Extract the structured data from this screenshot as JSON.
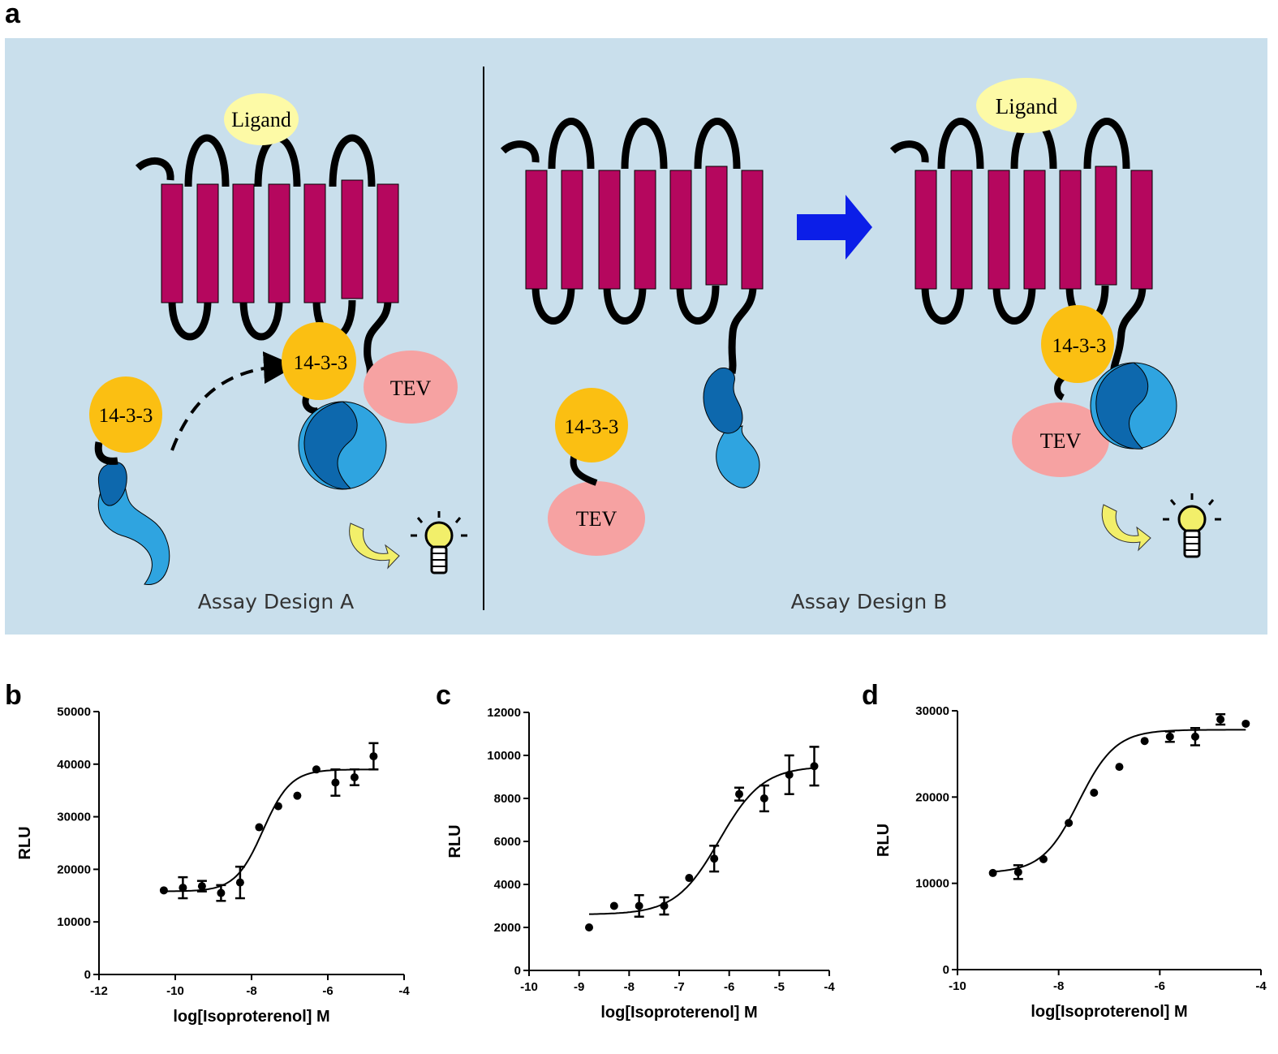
{
  "panels": {
    "a": "a",
    "b": "b",
    "c": "c",
    "d": "d"
  },
  "schematic": {
    "ligand_label": "Ligand",
    "protein_label": "14-3-3",
    "tev_label": "TEV",
    "design_a_caption": "Assay Design A",
    "design_b_caption": "Assay Design B",
    "colors": {
      "background": "#c9dfec",
      "helix": "#b5075e",
      "ligand": "#fdfaa6",
      "protein_14_3_3": "#fbbf12",
      "tev": "#f6a2a2",
      "luciferase_dark": "#0d68ad",
      "luciferase_light": "#2fa4e0",
      "arrow": "#0b1ee8",
      "bulb": "#f2ef6a"
    }
  },
  "chart_data": [
    {
      "id": "b",
      "type": "scatter",
      "xlabel": "log[Isoproterenol] M",
      "ylabel": "RLU",
      "xlim": [
        -12,
        -4
      ],
      "ylim": [
        0,
        50000
      ],
      "xticks": [
        -12,
        -10,
        -8,
        -6,
        -4
      ],
      "yticks": [
        0,
        10000,
        20000,
        30000,
        40000,
        50000
      ],
      "x": [
        -10.3,
        -9.8,
        -9.3,
        -8.8,
        -8.3,
        -7.8,
        -7.3,
        -6.8,
        -6.3,
        -5.8,
        -5.3,
        -4.8
      ],
      "y": [
        16000,
        16500,
        16800,
        15500,
        17500,
        28000,
        32000,
        34000,
        39000,
        36500,
        37500,
        41500
      ],
      "err": [
        0,
        2000,
        1000,
        1500,
        3000,
        0,
        0,
        0,
        0,
        2500,
        1500,
        2500
      ],
      "fit": {
        "bottom": 15800,
        "top": 39000,
        "log_ec50": -7.7,
        "hill": 1.2
      }
    },
    {
      "id": "c",
      "type": "scatter",
      "xlabel": "log[Isoproterenol] M",
      "ylabel": "RLU",
      "xlim": [
        -10,
        -4
      ],
      "ylim": [
        0,
        12000
      ],
      "xticks": [
        -10,
        -9,
        -8,
        -7,
        -6,
        -5,
        -4
      ],
      "yticks": [
        0,
        2000,
        4000,
        6000,
        8000,
        10000,
        12000
      ],
      "x": [
        -8.8,
        -8.3,
        -7.8,
        -7.3,
        -6.8,
        -6.3,
        -5.8,
        -5.3,
        -4.8,
        -4.3
      ],
      "y": [
        2000,
        3000,
        3000,
        3000,
        4300,
        5200,
        8200,
        8000,
        9100,
        9500
      ],
      "err": [
        0,
        0,
        500,
        400,
        0,
        600,
        300,
        600,
        900,
        900
      ],
      "fit": {
        "bottom": 2600,
        "top": 9500,
        "log_ec50": -6.2,
        "hill": 1.0
      }
    },
    {
      "id": "d",
      "type": "scatter",
      "xlabel": "log[Isoproterenol] M",
      "ylabel": "RLU",
      "xlim": [
        -10,
        -4
      ],
      "ylim": [
        0,
        30000
      ],
      "xticks": [
        -10,
        -8,
        -6,
        -4
      ],
      "yticks": [
        0,
        10000,
        20000,
        30000
      ],
      "x": [
        -9.3,
        -8.8,
        -8.3,
        -7.8,
        -7.3,
        -6.8,
        -6.3,
        -5.8,
        -5.3,
        -4.8,
        -4.3
      ],
      "y": [
        11200,
        11300,
        12800,
        17000,
        20500,
        23500,
        26500,
        27000,
        27000,
        29000,
        28500
      ],
      "err": [
        0,
        800,
        0,
        0,
        0,
        0,
        0,
        600,
        1000,
        600,
        0
      ],
      "fit": {
        "bottom": 11200,
        "top": 27800,
        "log_ec50": -7.6,
        "hill": 1.2
      }
    }
  ]
}
